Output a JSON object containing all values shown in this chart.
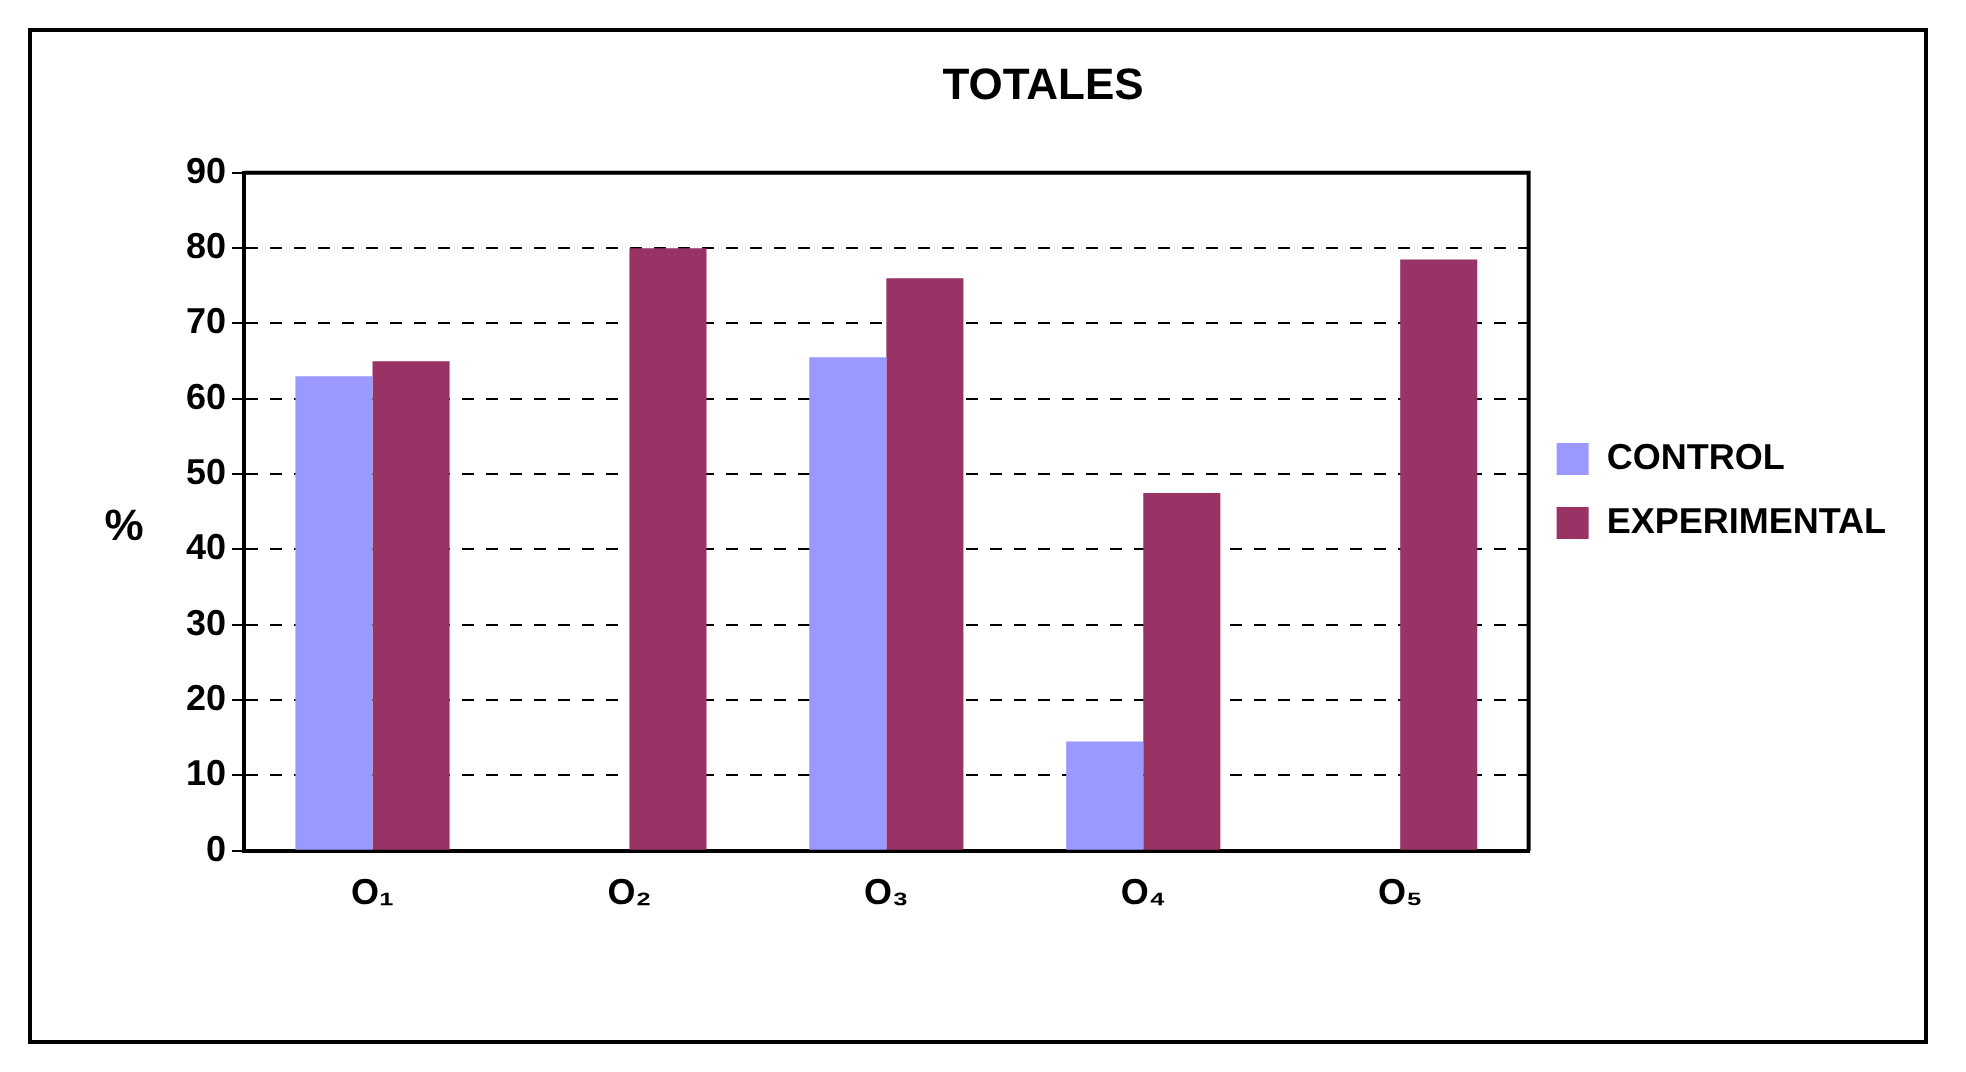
{
  "chart_data": {
    "type": "bar",
    "title": "TOTALES",
    "ylabel": "%",
    "categories": [
      "O₁",
      "O₂",
      "O₃",
      "O₄",
      "O₅"
    ],
    "series": [
      {
        "name": "CONTROL",
        "color": "#9999ff",
        "values": [
          63,
          null,
          65.5,
          14.5,
          null
        ]
      },
      {
        "name": "EXPERIMENTAL",
        "color": "#993366",
        "values": [
          65,
          80,
          76,
          47.5,
          78.5
        ]
      }
    ],
    "ylim": [
      0,
      90
    ],
    "yticks": [
      0,
      10,
      20,
      30,
      40,
      50,
      60,
      70,
      80,
      90
    ],
    "grid": "y",
    "legend": "right"
  }
}
